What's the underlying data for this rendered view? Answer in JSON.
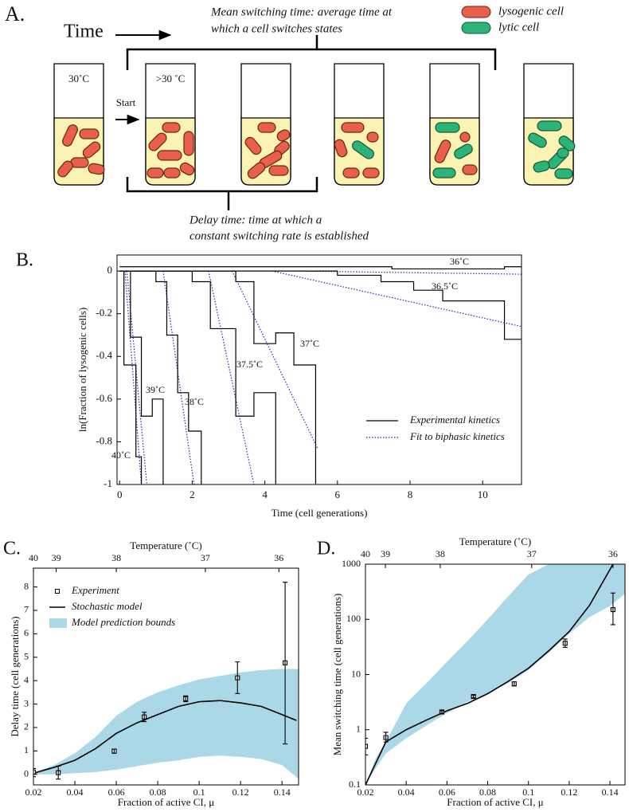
{
  "panel_a": {
    "label": "A.",
    "time": "Time",
    "mean_switching": [
      "Mean switching time: average time at",
      "which a cell switches states"
    ],
    "legend": [
      "lysogenic cell",
      "lytic cell"
    ],
    "start_temp": "30˚C",
    "shift_temp": ">30 ˚C",
    "start": "Start",
    "delay": [
      "Delay time: time at which a",
      "constant switching rate is established"
    ]
  },
  "chart_data": [
    {
      "type": "step",
      "label": "B.",
      "xlabel": "Time (cell generations)",
      "ylabel": "ln(Fraction of lysogenic cells)",
      "xlim": [
        -0.07,
        11.07
      ],
      "ylim": [
        -1,
        0.075
      ],
      "xticks": [
        0,
        2,
        4,
        6,
        8,
        10
      ],
      "yticks": [
        0,
        -0.2,
        -0.4,
        -0.6,
        -0.8,
        -1
      ],
      "legend_position": "lower right",
      "legend": [
        {
          "name": "Experimental kinetics",
          "color": "#000000",
          "style": "solid"
        },
        {
          "name": "Fit to biphasic kinetics",
          "color": "#2a2aa0",
          "style": "dotted"
        }
      ],
      "series": [
        {
          "label": "40˚C",
          "x": [
            0,
            0.12,
            0.45,
            0.6
          ],
          "values": [
            0,
            -0.44,
            -0.87,
            -1
          ]
        },
        {
          "label": "39˚C",
          "x": [
            0,
            0.3,
            0.6,
            0.9,
            1.2
          ],
          "values": [
            0,
            -0.31,
            -0.68,
            -0.6,
            -1
          ]
        },
        {
          "label": "38˚C",
          "x": [
            0,
            1.0,
            1.3,
            1.6,
            1.9,
            2.25
          ],
          "values": [
            0,
            -0.05,
            -0.3,
            -0.57,
            -0.75,
            -1
          ]
        },
        {
          "label": "37.5˚C",
          "x": [
            0,
            2.0,
            2.5,
            3.2,
            3.7,
            4.3
          ],
          "values": [
            0,
            -0.05,
            -0.27,
            -0.68,
            -0.57,
            -1
          ]
        },
        {
          "label": "37˚C",
          "x": [
            0,
            3.2,
            3.7,
            4.3,
            4.8,
            5.4
          ],
          "values": [
            0,
            -0.05,
            -0.34,
            -0.29,
            -0.44,
            -1
          ]
        },
        {
          "label": "36.5˚C",
          "x": [
            0,
            6.0,
            7.2,
            8.1,
            8.9,
            10.6,
            11.07
          ],
          "values": [
            0,
            -0.02,
            -0.05,
            -0.09,
            -0.14,
            -0.32,
            -0.32
          ]
        },
        {
          "label": "36˚C",
          "x": [
            0,
            7.5,
            10.6,
            11.07
          ],
          "values": [
            0.02,
            0.01,
            0.02,
            0.02
          ]
        }
      ],
      "fits": [
        {
          "x": [
            0.15,
            0.6
          ],
          "values": [
            0,
            -1
          ]
        },
        {
          "x": [
            0.2,
            0.75
          ],
          "values": [
            0,
            -1
          ]
        },
        {
          "x": [
            1.2,
            2.05
          ],
          "values": [
            0,
            -1
          ]
        },
        {
          "x": [
            2.45,
            3.7
          ],
          "values": [
            0,
            -1
          ]
        },
        {
          "x": [
            3.1,
            5.45
          ],
          "values": [
            0,
            -0.83
          ]
        },
        {
          "x": [
            4.2,
            11.07
          ],
          "values": [
            0,
            -0.26
          ]
        },
        {
          "x": [
            4.9,
            11.07
          ],
          "values": [
            0,
            -0.015
          ]
        }
      ]
    },
    {
      "type": "line",
      "label": "C.",
      "xlabel": "Fraction of active CI, μ",
      "ylabel": "Delay time (cell generations)",
      "x2label": "Temperature (˚C)",
      "xlim": [
        0.02,
        0.148
      ],
      "ylim": [
        -0.45,
        8.8
      ],
      "xticks": [
        0.02,
        0.04,
        0.06,
        0.08,
        0.1,
        0.12,
        0.14
      ],
      "yticks": [
        0,
        1,
        2,
        3,
        4,
        5,
        6,
        7,
        8
      ],
      "x2ticks": [
        {
          "value": 0.02,
          "label": "40"
        },
        {
          "value": 0.031,
          "label": "39"
        },
        {
          "value": 0.06,
          "label": "38"
        },
        {
          "value": 0.103,
          "label": "37"
        },
        {
          "value": 0.1385,
          "label": "36"
        }
      ],
      "legend_position": "upper left",
      "series": [
        {
          "name": "Experiment",
          "kind": "errorbar",
          "color": "#000000",
          "x": [
            0.02,
            0.032,
            0.059,
            0.0735,
            0.0935,
            0.1185,
            0.1415
          ],
          "values": [
            0.1,
            0.07,
            0.99,
            2.45,
            3.23,
            4.12,
            4.76
          ],
          "lower": [
            -0.1,
            -0.2,
            0.9,
            2.25,
            3.1,
            3.45,
            1.3
          ],
          "upper": [
            0.25,
            0.35,
            1.08,
            2.65,
            3.35,
            4.8,
            8.2
          ]
        },
        {
          "name": "Stochastic model",
          "kind": "line",
          "color": "#000000",
          "x": [
            0.02,
            0.03,
            0.04,
            0.05,
            0.06,
            0.07,
            0.08,
            0.09,
            0.1,
            0.11,
            0.12,
            0.13,
            0.14,
            0.147
          ],
          "values": [
            0.05,
            0.3,
            0.6,
            1.1,
            1.75,
            2.2,
            2.55,
            2.9,
            3.1,
            3.15,
            3.05,
            2.9,
            2.55,
            2.3
          ]
        },
        {
          "name": "Model prediction bounds",
          "kind": "band",
          "color": "#aad8e6",
          "x": [
            0.02,
            0.03,
            0.04,
            0.05,
            0.06,
            0.07,
            0.08,
            0.09,
            0.1,
            0.11,
            0.12,
            0.13,
            0.14,
            0.148
          ],
          "lower": [
            0,
            0,
            0.05,
            0.1,
            0.2,
            0.35,
            0.5,
            0.6,
            0.75,
            0.8,
            0.75,
            0.65,
            0.4,
            -0.2
          ],
          "values": [
            0.05,
            0.4,
            0.9,
            1.6,
            2.5,
            3.1,
            3.5,
            3.8,
            4.05,
            4.2,
            4.35,
            4.45,
            4.5,
            4.5
          ]
        }
      ]
    },
    {
      "type": "line",
      "label": "D.",
      "xlabel": "Fraction of active CI, μ",
      "ylabel": "Mean switching time (cell generations)",
      "x2label": "Temperature (˚C)",
      "xlim": [
        0.02,
        0.1474
      ],
      "ylim": [
        0.1,
        1000
      ],
      "yscale": "log",
      "xticks": [
        0.02,
        0.04,
        0.06,
        0.08,
        0.1,
        0.12,
        0.14
      ],
      "yticks": [
        0.1,
        1,
        10,
        100,
        1000
      ],
      "x2ticks": [
        {
          "value": 0.02,
          "label": "40"
        },
        {
          "value": 0.0298,
          "label": "39"
        },
        {
          "value": 0.0567,
          "label": "38"
        },
        {
          "value": 0.1016,
          "label": "37"
        },
        {
          "value": 0.1415,
          "label": "36"
        }
      ],
      "series": [
        {
          "kind": "errorbar",
          "color": "#000000",
          "x": [
            0.02,
            0.03,
            0.0575,
            0.073,
            0.093,
            0.118,
            0.1415
          ],
          "values": [
            0.5,
            0.72,
            2.1,
            4.0,
            6.8,
            37,
            150
          ],
          "lower": [
            0.35,
            0.6,
            2.0,
            3.8,
            6.2,
            31,
            80
          ],
          "upper": [
            0.7,
            0.9,
            2.2,
            4.2,
            7.4,
            44,
            300
          ]
        },
        {
          "kind": "line",
          "color": "#000000",
          "x": [
            0.02,
            0.03,
            0.04,
            0.05,
            0.06,
            0.07,
            0.08,
            0.09,
            0.1,
            0.11,
            0.12,
            0.13,
            0.1415
          ],
          "values": [
            0.1,
            0.6,
            1.0,
            1.5,
            2.2,
            3.0,
            4.5,
            7.5,
            13,
            27,
            60,
            180,
            1000
          ]
        },
        {
          "kind": "band",
          "color": "#aad8e6",
          "x": [
            0.02,
            0.025,
            0.03,
            0.04,
            0.05,
            0.06,
            0.07,
            0.08,
            0.09,
            0.1,
            0.11,
            0.12,
            0.13,
            0.14,
            0.1474
          ],
          "lower": [
            0.1,
            0.2,
            0.37,
            0.7,
            1.2,
            2.0,
            3.2,
            4.6,
            7,
            12,
            25,
            55,
            110,
            175,
            290
          ],
          "values": [
            0.1,
            0.3,
            0.6,
            3,
            7,
            17,
            40,
            100,
            260,
            650,
            1000,
            1000,
            1000,
            1000,
            1000
          ]
        }
      ]
    }
  ]
}
